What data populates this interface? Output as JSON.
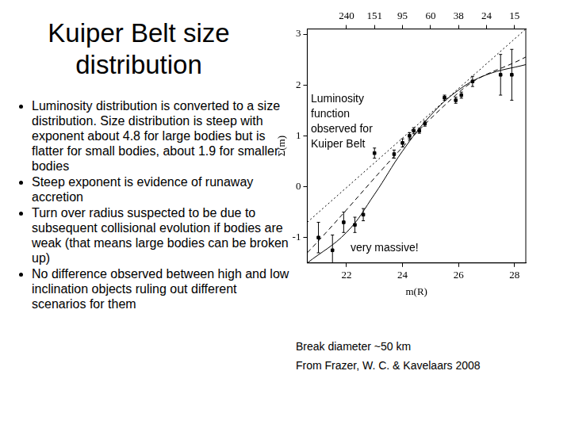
{
  "slide": {
    "title": "Kuiper Belt size distribution",
    "bullets": [
      "Luminosity distribution is converted to a size distribution. Size distribution is steep with exponent about 4.8 for large bodies but is flatter for small bodies, about 1.9 for smaller bodies",
      "Steep exponent is evidence of runaway accretion",
      "Turn over radius suspected to be due to subsequent collisional evolution if bodies are weak (that means large bodies can be broken up)",
      "No difference observed between high and low inclination objects ruling out different scenarios for them"
    ],
    "annotations": [
      "Luminosity function observed for Kuiper Belt",
      "very massive!"
    ],
    "caption": [
      "Break diameter ~50 km",
      "From Frazer, W. C. & Kavelaars 2008"
    ]
  },
  "chart_data": {
    "type": "scatter",
    "x_label": "m(R)",
    "y_label": "Σ(m)",
    "xlim": [
      20.6,
      28.4
    ],
    "xticks": [
      22,
      24,
      26,
      28
    ],
    "x2lim": [
      20.6,
      28.4
    ],
    "x2ticks": [
      {
        "value": 22,
        "label": "240"
      },
      {
        "value": 23,
        "label": "151"
      },
      {
        "value": 24,
        "label": "95"
      },
      {
        "value": 25,
        "label": "60"
      },
      {
        "value": 26,
        "label": "38"
      },
      {
        "value": 27,
        "label": "24"
      },
      {
        "value": 28,
        "label": "15"
      }
    ],
    "ylim": [
      -1.5,
      3.1
    ],
    "yticks": [
      -1,
      0,
      1,
      2,
      3
    ],
    "grid": false,
    "series": [
      {
        "type": "scatter",
        "marker": "square",
        "color": "#000000",
        "x": [
          21.0,
          21.5,
          21.9,
          22.3,
          22.6,
          23.0,
          23.7,
          24.0,
          24.25,
          24.4,
          24.6,
          24.8,
          25.5,
          25.9,
          26.1,
          26.5,
          27.5,
          27.9
        ],
        "values": [
          -1.0,
          -1.25,
          -0.7,
          -0.75,
          -0.55,
          0.66,
          0.64,
          0.86,
          1.0,
          1.1,
          1.1,
          1.24,
          1.75,
          1.7,
          1.8,
          2.07,
          2.2,
          2.2
        ],
        "errors": [
          0.3,
          0.3,
          0.2,
          0.15,
          0.12,
          0.1,
          0.08,
          0.08,
          0.06,
          0.06,
          0.05,
          0.05,
          0.05,
          0.06,
          0.06,
          0.1,
          0.4,
          0.5
        ]
      },
      {
        "type": "line",
        "line_style": "solid",
        "color": "#000000",
        "x": [
          20.6,
          22,
          23,
          24,
          25,
          26,
          27,
          28.4
        ],
        "values": [
          -1.5,
          -0.9,
          -0.15,
          0.7,
          1.4,
          1.9,
          2.2,
          2.4
        ]
      },
      {
        "type": "line",
        "line_style": "dashed",
        "color": "#000000",
        "x": [
          20.6,
          26,
          28.4
        ],
        "values": [
          -1.3,
          1.85,
          2.55
        ]
      },
      {
        "type": "line",
        "line_style": "dotted",
        "color": "#000000",
        "x": [
          20.6,
          28.4
        ],
        "values": [
          -0.7,
          3.1
        ]
      }
    ]
  }
}
